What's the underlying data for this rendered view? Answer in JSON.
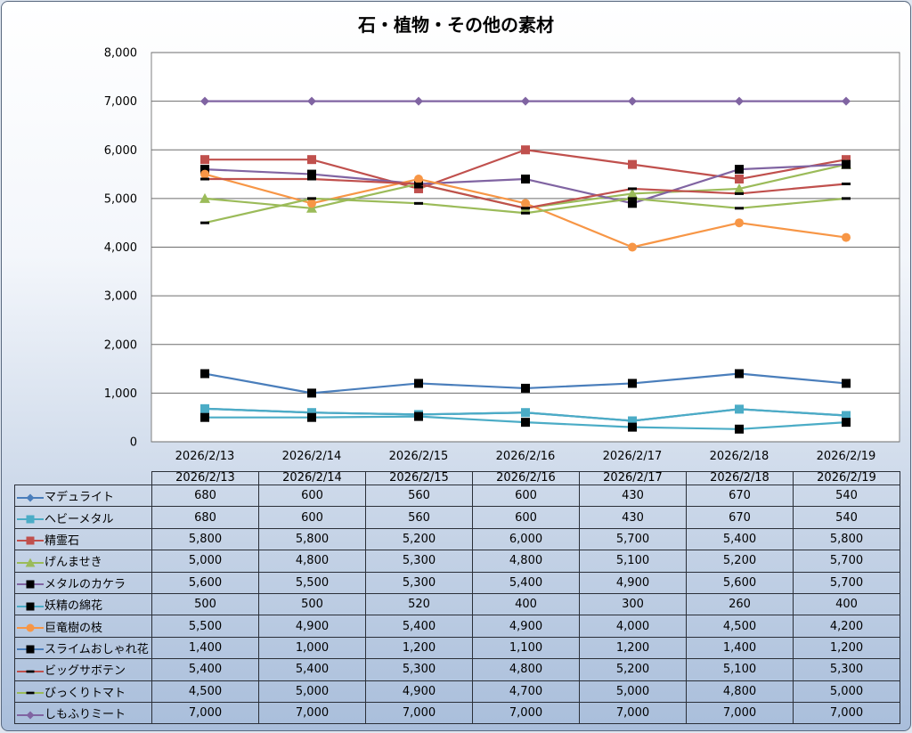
{
  "chart_data": {
    "type": "line",
    "title": "石・植物・その他の素材",
    "categories": [
      "2026/2/13",
      "2026/2/14",
      "2026/2/15",
      "2026/2/16",
      "2026/2/17",
      "2026/2/18",
      "2026/2/19"
    ],
    "ylim": [
      0,
      8000
    ],
    "yticks": [
      "0",
      "1,000",
      "2,000",
      "3,000",
      "4,000",
      "5,000",
      "6,000",
      "7,000",
      "8,000"
    ],
    "grid": true,
    "legend": "data-table",
    "series": [
      {
        "name": "マデュライト",
        "color": "#4a7ebb",
        "marker": "diamond",
        "values": [
          680,
          600,
          560,
          600,
          430,
          670,
          540
        ],
        "labels": [
          "680",
          "600",
          "560",
          "600",
          "430",
          "670",
          "540"
        ]
      },
      {
        "name": "ヘビーメタル",
        "color": "#4bacc6",
        "marker": "square",
        "values": [
          680,
          600,
          560,
          600,
          430,
          670,
          540
        ],
        "labels": [
          "680",
          "600",
          "560",
          "600",
          "430",
          "670",
          "540"
        ]
      },
      {
        "name": "精霊石",
        "color": "#c0504d",
        "marker": "square",
        "values": [
          5800,
          5800,
          5200,
          6000,
          5700,
          5400,
          5800
        ],
        "labels": [
          "5,800",
          "5,800",
          "5,200",
          "6,000",
          "5,700",
          "5,400",
          "5,800"
        ]
      },
      {
        "name": "げんませき",
        "color": "#9bbb59",
        "marker": "triangle",
        "values": [
          5000,
          4800,
          5300,
          4800,
          5100,
          5200,
          5700
        ],
        "labels": [
          "5,000",
          "4,800",
          "5,300",
          "4,800",
          "5,100",
          "5,200",
          "5,700"
        ]
      },
      {
        "name": "メタルのカケラ",
        "color": "#8064a2",
        "marker": "blacksquare",
        "values": [
          5600,
          5500,
          5300,
          5400,
          4900,
          5600,
          5700
        ],
        "labels": [
          "5,600",
          "5,500",
          "5,300",
          "5,400",
          "4,900",
          "5,600",
          "5,700"
        ]
      },
      {
        "name": "妖精の綿花",
        "color": "#4bacc6",
        "marker": "blacksquare",
        "values": [
          500,
          500,
          520,
          400,
          300,
          260,
          400
        ],
        "labels": [
          "500",
          "500",
          "520",
          "400",
          "300",
          "260",
          "400"
        ]
      },
      {
        "name": "巨竜樹の枝",
        "color": "#f79646",
        "marker": "circle",
        "values": [
          5500,
          4900,
          5400,
          4900,
          4000,
          4500,
          4200
        ],
        "labels": [
          "5,500",
          "4,900",
          "5,400",
          "4,900",
          "4,000",
          "4,500",
          "4,200"
        ]
      },
      {
        "name": "スライムおしゃれ花",
        "color": "#4a7ebb",
        "marker": "blacksquare",
        "values": [
          1400,
          1000,
          1200,
          1100,
          1200,
          1400,
          1200
        ],
        "labels": [
          "1,400",
          "1,000",
          "1,200",
          "1,100",
          "1,200",
          "1,400",
          "1,200"
        ]
      },
      {
        "name": "ビッグサボテン",
        "color": "#c0504d",
        "marker": "dash",
        "values": [
          5400,
          5400,
          5300,
          4800,
          5200,
          5100,
          5300
        ],
        "labels": [
          "5,400",
          "5,400",
          "5,300",
          "4,800",
          "5,200",
          "5,100",
          "5,300"
        ]
      },
      {
        "name": "びっくりトマト",
        "color": "#9bbb59",
        "marker": "dash",
        "values": [
          4500,
          5000,
          4900,
          4700,
          5000,
          4800,
          5000
        ],
        "labels": [
          "4,500",
          "5,000",
          "4,900",
          "4,700",
          "5,000",
          "4,800",
          "5,000"
        ]
      },
      {
        "name": "しもふりミート",
        "color": "#8064a2",
        "marker": "diamond",
        "values": [
          7000,
          7000,
          7000,
          7000,
          7000,
          7000,
          7000
        ],
        "labels": [
          "7,000",
          "7,000",
          "7,000",
          "7,000",
          "7,000",
          "7,000",
          "7,000"
        ]
      }
    ]
  }
}
